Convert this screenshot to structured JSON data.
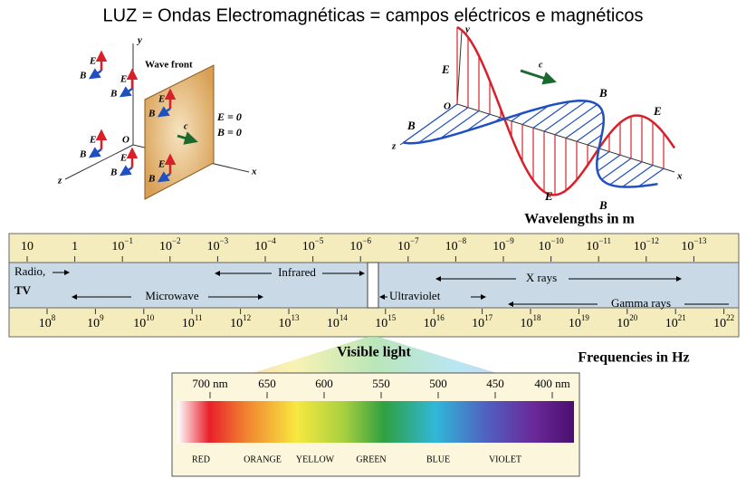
{
  "title": "LUZ = Ondas Electromagnéticas = campos eléctricos e magnéticos",
  "left_diagram": {
    "axis_y": "y",
    "axis_x": "x",
    "axis_z": "z",
    "origin": "O",
    "wave_front": "Wave front",
    "speed": "c",
    "field_e": "E = 0",
    "field_b": "B = 0",
    "vectors": [
      {
        "e": "E",
        "b": "B"
      },
      {
        "e": "E",
        "b": "B"
      },
      {
        "e": "E",
        "b": "B"
      },
      {
        "e": "E",
        "b": "B"
      },
      {
        "e": "E",
        "b": "B"
      },
      {
        "e": "E",
        "b": "B"
      }
    ]
  },
  "right_diagram": {
    "axis_y": "y",
    "axis_x": "x",
    "axis_z": "z",
    "origin": "O",
    "speed": "c",
    "labels": [
      "E",
      "B",
      "B",
      "E",
      "E",
      "B"
    ]
  },
  "spectrum": {
    "wavelength_title": "Wavelengths in m",
    "wavelength_ticks": [
      {
        "base": "10"
      },
      {
        "base": "1"
      },
      {
        "base": "10",
        "exp": "−1"
      },
      {
        "base": "10",
        "exp": "−2"
      },
      {
        "base": "10",
        "exp": "−3"
      },
      {
        "base": "10",
        "exp": "−4"
      },
      {
        "base": "10",
        "exp": "−5"
      },
      {
        "base": "10",
        "exp": "−6"
      },
      {
        "base": "10",
        "exp": "−7"
      },
      {
        "base": "10",
        "exp": "−8"
      },
      {
        "base": "10",
        "exp": "−9"
      },
      {
        "base": "10",
        "exp": "−10"
      },
      {
        "base": "10",
        "exp": "−11"
      },
      {
        "base": "10",
        "exp": "−12"
      },
      {
        "base": "10",
        "exp": "−13"
      }
    ],
    "bands": {
      "radio": "Radio,",
      "tv": "TV",
      "infrared": "Infrared",
      "x_rays": "X rays",
      "microwave": "Microwave",
      "ultraviolet": "Ultraviolet",
      "gamma_rays": "Gamma rays"
    },
    "frequency_ticks": [
      {
        "base": "10",
        "exp": "8"
      },
      {
        "base": "10",
        "exp": "9"
      },
      {
        "base": "10",
        "exp": "10"
      },
      {
        "base": "10",
        "exp": "11"
      },
      {
        "base": "10",
        "exp": "12"
      },
      {
        "base": "10",
        "exp": "13"
      },
      {
        "base": "10",
        "exp": "14"
      },
      {
        "base": "10",
        "exp": "15"
      },
      {
        "base": "10",
        "exp": "16"
      },
      {
        "base": "10",
        "exp": "17"
      },
      {
        "base": "10",
        "exp": "18"
      },
      {
        "base": "10",
        "exp": "19"
      },
      {
        "base": "10",
        "exp": "20"
      },
      {
        "base": "10",
        "exp": "21"
      },
      {
        "base": "10",
        "exp": "22"
      }
    ],
    "visible_title": "Visible light",
    "frequency_title": "Frequencies in Hz",
    "nm_ticks": [
      "700 nm",
      "650",
      "600",
      "550",
      "500",
      "450",
      "400 nm"
    ],
    "colors": [
      "RED",
      "ORANGE",
      "YELLOW",
      "GREEN",
      "BLUE",
      "VIOLET"
    ]
  }
}
